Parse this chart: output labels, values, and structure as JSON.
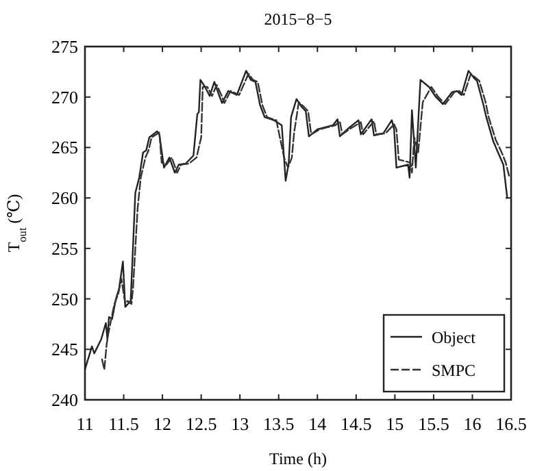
{
  "chart_data": {
    "type": "line",
    "title": "2015−8−5",
    "xlabel": "Time (h)",
    "ylabel": "T$_{out}$ (℃)",
    "xlim": [
      11,
      16.5
    ],
    "ylim": [
      240,
      275
    ],
    "xticks": [
      11,
      11.5,
      12,
      12.5,
      13,
      13.5,
      14,
      14.5,
      15,
      15.5,
      16,
      16.5
    ],
    "yticks": [
      240,
      245,
      250,
      255,
      260,
      265,
      270,
      275
    ],
    "grid": false,
    "legend": "bottom right",
    "marker": "none",
    "series": [
      {
        "name": "Object",
        "color": "#222222",
        "line_style": "solid",
        "x": [
          11.0,
          11.09,
          11.12,
          11.21,
          11.27,
          11.29,
          11.31,
          11.35,
          11.4,
          11.44,
          11.49,
          11.52,
          11.59,
          11.65,
          11.7,
          11.75,
          11.79,
          11.83,
          11.93,
          11.96,
          12.02,
          12.09,
          12.16,
          12.21,
          12.3,
          12.4,
          12.45,
          12.47,
          12.49,
          12.55,
          12.61,
          12.67,
          12.73,
          12.77,
          12.85,
          12.96,
          13.08,
          13.14,
          13.2,
          13.26,
          13.32,
          13.44,
          13.54,
          13.59,
          13.63,
          13.66,
          13.73,
          13.8,
          13.85,
          13.89,
          14.0,
          14.1,
          14.2,
          14.26,
          14.29,
          14.4,
          14.53,
          14.56,
          14.7,
          14.73,
          14.85,
          14.96,
          14.99,
          15.02,
          15.17,
          15.19,
          15.22,
          15.27,
          15.33,
          15.44,
          15.53,
          15.62,
          15.74,
          15.8,
          15.86,
          15.95,
          16.03,
          16.06,
          16.14,
          16.18,
          16.27,
          16.36,
          16.4,
          16.45
        ],
        "values": [
          243,
          245.3,
          244.6,
          246,
          247.6,
          246,
          248.2,
          248,
          250,
          251,
          253.7,
          249.2,
          249.8,
          260.5,
          262,
          264.5,
          264.7,
          266,
          266.6,
          266.3,
          263,
          264,
          262.5,
          263.3,
          263.4,
          264.2,
          268.3,
          268.5,
          271.7,
          271,
          270.1,
          271.5,
          270.2,
          269.4,
          270.6,
          270.2,
          272.6,
          271.7,
          271.5,
          269.2,
          268,
          267.7,
          267.2,
          261.7,
          263.5,
          268,
          269.8,
          269,
          268.6,
          266.1,
          266.8,
          267,
          267.2,
          267.8,
          266.1,
          266.9,
          267.7,
          266.3,
          267.8,
          266.2,
          266.4,
          267.7,
          266.8,
          263,
          263.3,
          262,
          268.7,
          263,
          271.7,
          271,
          270,
          269.3,
          270.5,
          270.6,
          270.2,
          272.6,
          271.8,
          271.6,
          269.3,
          268,
          265.6,
          264,
          263.3,
          260
        ]
      },
      {
        "name": "SMPC",
        "color": "#333333",
        "line_style": "dashed",
        "x": [
          11.22,
          11.25,
          11.28,
          11.3,
          11.34,
          11.38,
          11.43,
          11.47,
          11.52,
          11.55,
          11.6,
          11.62,
          11.68,
          11.72,
          11.78,
          11.82,
          11.86,
          11.96,
          11.99,
          12.05,
          12.12,
          12.19,
          12.24,
          12.34,
          12.44,
          12.5,
          12.52,
          12.58,
          12.64,
          12.7,
          12.76,
          12.8,
          12.88,
          12.99,
          13.11,
          13.17,
          13.23,
          13.29,
          13.35,
          13.47,
          13.57,
          13.62,
          13.67,
          13.7,
          13.76,
          13.83,
          13.88,
          13.92,
          14.03,
          14.13,
          14.23,
          14.29,
          14.32,
          14.43,
          14.56,
          14.59,
          14.73,
          14.76,
          14.88,
          14.99,
          15.02,
          15.05,
          15.2,
          15.22,
          15.25,
          15.3,
          15.36,
          15.47,
          15.56,
          15.65,
          15.77,
          15.83,
          15.89,
          15.98,
          16.06,
          16.09,
          16.17,
          16.21,
          16.3,
          16.39,
          16.43,
          16.48
        ],
        "values": [
          244,
          243,
          245.5,
          246.5,
          248,
          249.5,
          250.5,
          252,
          249.5,
          249.8,
          249.5,
          251,
          259,
          262,
          264,
          264.7,
          266,
          266.5,
          263.5,
          263.3,
          264,
          262.5,
          263.3,
          263.4,
          264,
          266,
          271,
          271,
          270.1,
          271.2,
          270.2,
          269.4,
          270.6,
          270.2,
          272.3,
          271.7,
          271.5,
          269.2,
          268,
          267.7,
          264,
          263,
          264,
          266.5,
          269.5,
          269,
          268.6,
          266.3,
          266.8,
          267,
          267.2,
          267.6,
          266.3,
          266.9,
          267.5,
          266.3,
          267.6,
          266.3,
          266.4,
          267.3,
          266.8,
          263.8,
          263.5,
          262.5,
          266,
          264.5,
          269.5,
          271,
          270,
          269.3,
          270.5,
          270.6,
          270.2,
          272.3,
          271.8,
          271.6,
          269.5,
          268,
          265.8,
          264.3,
          263.5,
          262
        ]
      }
    ]
  }
}
